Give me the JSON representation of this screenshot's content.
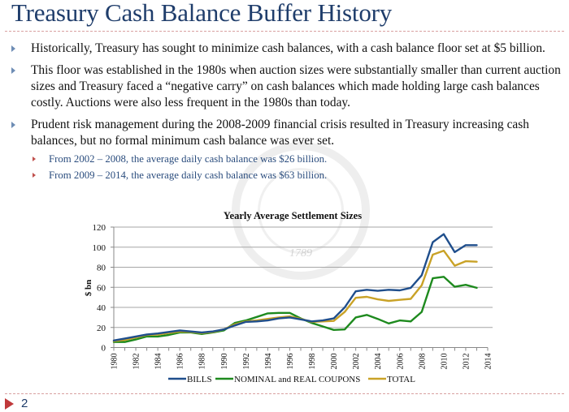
{
  "slide": {
    "title": "Treasury Cash Balance Buffer History",
    "page_number": "2",
    "seal_year": "1789",
    "bullets": [
      {
        "level": 1,
        "text": "Historically, Treasury has sought to minimize cash balances, with a cash balance floor set at $5 billion."
      },
      {
        "level": 1,
        "text": "This floor was established in the 1980s when auction sizes were substantially smaller than current auction sizes and Treasury faced a “negative carry” on cash balances which made holding large cash balances costly.  Auctions were also less frequent in the 1980s than today."
      },
      {
        "level": 1,
        "text": "Prudent risk management during the 2008-2009 financial crisis resulted in Treasury increasing cash balances, but no formal minimum cash balance was ever set."
      },
      {
        "level": 2,
        "text": "From 2002 – 2008, the average daily cash balance was $26 billion."
      },
      {
        "level": 2,
        "text": "From 2009 – 2014, the average daily cash balance was $63 billion."
      }
    ],
    "colors": {
      "title": "#1f3d6b",
      "sub_bullet_text": "#2b4d7e",
      "accent_red": "#c0393b"
    }
  },
  "chart_data": {
    "type": "line",
    "title": "Yearly Average Settlement Sizes",
    "xlabel": "",
    "ylabel": "$ bn",
    "ylim": [
      0,
      120
    ],
    "yticks": [
      0,
      20,
      40,
      60,
      80,
      100,
      120
    ],
    "xlim": [
      1980,
      2014
    ],
    "xtick_labels": [
      "1980",
      "1982",
      "1984",
      "1986",
      "1988",
      "1990",
      "1992",
      "1994",
      "1996",
      "1998",
      "2000",
      "2002",
      "2004",
      "2006",
      "2008",
      "2010",
      "2012",
      "2014"
    ],
    "grid": "horizontal",
    "legend_position": "bottom",
    "x": [
      1980,
      1981,
      1982,
      1983,
      1984,
      1985,
      1986,
      1987,
      1988,
      1989,
      1990,
      1991,
      1992,
      1993,
      1994,
      1995,
      1996,
      1997,
      1998,
      1999,
      2000,
      2001,
      2002,
      2003,
      2004,
      2005,
      2006,
      2007,
      2008,
      2009,
      2010,
      2011,
      2012,
      2013
    ],
    "series": [
      {
        "name": "BILLS",
        "color": "#1f4e8c",
        "values": [
          7,
          9,
          11,
          13,
          14,
          15.5,
          17,
          16,
          15,
          16,
          18,
          22,
          25.5,
          26,
          27,
          29,
          30,
          28,
          26,
          27,
          29,
          40,
          56,
          57.5,
          56.5,
          57.5,
          57,
          59.5,
          72,
          105,
          113,
          95,
          102,
          102
        ]
      },
      {
        "name": "NOMINAL and REAL COUPONS",
        "color": "#1e8a1e",
        "values": [
          5.5,
          5.5,
          8,
          11,
          11,
          12.5,
          15,
          15,
          13.5,
          15,
          17,
          24.5,
          27,
          30.5,
          34,
          34.5,
          34.5,
          29,
          24.5,
          21,
          17.5,
          18,
          30,
          32.5,
          28.5,
          24,
          27,
          26,
          35.5,
          69,
          70.5,
          60.5,
          62.5,
          59.5
        ]
      },
      {
        "name": "TOTAL",
        "color": "#c9a227",
        "values": [
          6.5,
          7.5,
          10,
          12.5,
          13,
          14.5,
          16,
          15.5,
          14.5,
          15.5,
          18,
          23,
          26,
          27,
          28.5,
          30,
          31,
          28.5,
          25.5,
          26,
          26.5,
          35.5,
          49.5,
          50.5,
          48,
          46.5,
          47.5,
          48.5,
          62,
          92.5,
          96.5,
          81.5,
          86,
          85.5
        ]
      }
    ]
  }
}
